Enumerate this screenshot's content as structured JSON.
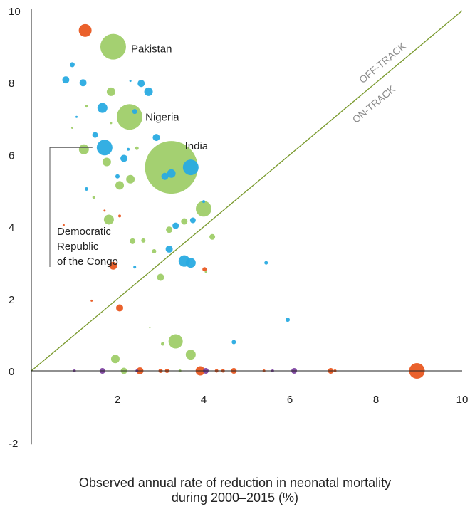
{
  "chart_data": {
    "type": "scatter",
    "xlabel_line1": "Observed annual rate of reduction in neonatal mortality",
    "xlabel_line2": "during 2000–2015 (%)",
    "xlim": [
      0,
      10
    ],
    "ylim": [
      -2,
      10
    ],
    "x_ticks": [
      2,
      4,
      6,
      8,
      10
    ],
    "y_ticks": [
      -2,
      0,
      2,
      4,
      6,
      8,
      10
    ],
    "grid": false,
    "reference_line": {
      "from": [
        0,
        0
      ],
      "to": [
        10,
        10
      ],
      "color": "#7a9a2e"
    },
    "region_labels": [
      "OFF-TRACK",
      "ON-TRACK"
    ],
    "colors": {
      "green": "#9ccc65",
      "blue": "#29abe2",
      "orange": "#e8541a",
      "purple": "#7b3f9e",
      "line": "#7a9a2e"
    },
    "annotations": [
      {
        "text": "Pakistan",
        "x": 1.9,
        "y": 9.0
      },
      {
        "text": "Nigeria",
        "x": 2.25,
        "y": 7.05
      },
      {
        "text": "India",
        "x": 3.25,
        "y": 5.65
      },
      {
        "text_lines": [
          "Democratic",
          "Republic",
          "of the Congo"
        ],
        "x": 1.6,
        "y": 6.2
      }
    ],
    "points": [
      {
        "x": 1.25,
        "y": 9.45,
        "r": 9,
        "c": "orange"
      },
      {
        "x": 1.9,
        "y": 9.0,
        "r": 18,
        "c": "green"
      },
      {
        "x": 0.95,
        "y": 8.5,
        "r": 3.5,
        "c": "blue"
      },
      {
        "x": 0.8,
        "y": 8.08,
        "r": 5,
        "c": "blue"
      },
      {
        "x": 1.2,
        "y": 8.0,
        "r": 5,
        "c": "blue"
      },
      {
        "x": 2.3,
        "y": 8.05,
        "r": 1.5,
        "c": "blue"
      },
      {
        "x": 2.55,
        "y": 7.98,
        "r": 5,
        "c": "blue"
      },
      {
        "x": 1.85,
        "y": 7.75,
        "r": 6,
        "c": "green"
      },
      {
        "x": 2.72,
        "y": 7.75,
        "r": 6,
        "c": "blue"
      },
      {
        "x": 1.28,
        "y": 7.35,
        "r": 2,
        "c": "green"
      },
      {
        "x": 1.65,
        "y": 7.3,
        "r": 7,
        "c": "blue"
      },
      {
        "x": 2.28,
        "y": 7.05,
        "r": 18,
        "c": "green"
      },
      {
        "x": 2.4,
        "y": 7.2,
        "r": 3.5,
        "c": "blue"
      },
      {
        "x": 1.05,
        "y": 7.05,
        "r": 1.5,
        "c": "blue"
      },
      {
        "x": 1.85,
        "y": 6.88,
        "r": 1.5,
        "c": "green"
      },
      {
        "x": 0.95,
        "y": 6.75,
        "r": 1.5,
        "c": "green"
      },
      {
        "x": 1.48,
        "y": 6.55,
        "r": 4,
        "c": "blue"
      },
      {
        "x": 2.9,
        "y": 6.48,
        "r": 5,
        "c": "blue"
      },
      {
        "x": 1.22,
        "y": 6.15,
        "r": 7,
        "c": "green"
      },
      {
        "x": 1.7,
        "y": 6.2,
        "r": 11,
        "c": "blue"
      },
      {
        "x": 2.25,
        "y": 6.15,
        "r": 2,
        "c": "blue"
      },
      {
        "x": 2.45,
        "y": 6.18,
        "r": 2.5,
        "c": "green"
      },
      {
        "x": 1.75,
        "y": 5.8,
        "r": 6,
        "c": "green"
      },
      {
        "x": 2.15,
        "y": 5.9,
        "r": 5,
        "c": "blue"
      },
      {
        "x": 3.25,
        "y": 5.65,
        "r": 37,
        "c": "green"
      },
      {
        "x": 3.7,
        "y": 5.65,
        "r": 11,
        "c": "blue"
      },
      {
        "x": 3.25,
        "y": 5.48,
        "r": 6,
        "c": "blue"
      },
      {
        "x": 3.1,
        "y": 5.4,
        "r": 5,
        "c": "blue"
      },
      {
        "x": 2.3,
        "y": 5.32,
        "r": 6,
        "c": "green"
      },
      {
        "x": 2.0,
        "y": 5.4,
        "r": 3,
        "c": "blue"
      },
      {
        "x": 2.05,
        "y": 5.15,
        "r": 6,
        "c": "green"
      },
      {
        "x": 1.28,
        "y": 5.05,
        "r": 2.5,
        "c": "blue"
      },
      {
        "x": 1.45,
        "y": 4.82,
        "r": 2,
        "c": "green"
      },
      {
        "x": 4.0,
        "y": 4.7,
        "r": 2,
        "c": "blue"
      },
      {
        "x": 4.0,
        "y": 4.5,
        "r": 11,
        "c": "green"
      },
      {
        "x": 1.7,
        "y": 4.45,
        "r": 1.5,
        "c": "orange"
      },
      {
        "x": 2.05,
        "y": 4.3,
        "r": 2,
        "c": "orange"
      },
      {
        "x": 1.8,
        "y": 4.2,
        "r": 7,
        "c": "green"
      },
      {
        "x": 3.75,
        "y": 4.18,
        "r": 4,
        "c": "blue"
      },
      {
        "x": 3.55,
        "y": 4.15,
        "r": 4.5,
        "c": "green"
      },
      {
        "x": 3.35,
        "y": 4.03,
        "r": 4.5,
        "c": "blue"
      },
      {
        "x": 0.75,
        "y": 4.05,
        "r": 1.5,
        "c": "orange"
      },
      {
        "x": 3.2,
        "y": 3.92,
        "r": 4.5,
        "c": "green"
      },
      {
        "x": 4.2,
        "y": 3.72,
        "r": 4,
        "c": "green"
      },
      {
        "x": 2.35,
        "y": 3.6,
        "r": 4,
        "c": "green"
      },
      {
        "x": 2.6,
        "y": 3.62,
        "r": 3,
        "c": "green"
      },
      {
        "x": 3.2,
        "y": 3.38,
        "r": 5,
        "c": "blue"
      },
      {
        "x": 2.85,
        "y": 3.32,
        "r": 3,
        "c": "green"
      },
      {
        "x": 3.55,
        "y": 3.05,
        "r": 8,
        "c": "blue"
      },
      {
        "x": 3.7,
        "y": 3.0,
        "r": 7,
        "c": "blue"
      },
      {
        "x": 5.45,
        "y": 3.0,
        "r": 2.5,
        "c": "blue"
      },
      {
        "x": 1.9,
        "y": 2.92,
        "r": 5.5,
        "c": "orange"
      },
      {
        "x": 2.4,
        "y": 2.88,
        "r": 2,
        "c": "blue"
      },
      {
        "x": 4.02,
        "y": 2.82,
        "r": 3,
        "c": "orange"
      },
      {
        "x": 4.05,
        "y": 2.75,
        "r": 1.5,
        "c": "green"
      },
      {
        "x": 3.0,
        "y": 2.6,
        "r": 5,
        "c": "green"
      },
      {
        "x": 1.4,
        "y": 1.95,
        "r": 1.5,
        "c": "orange"
      },
      {
        "x": 2.05,
        "y": 1.75,
        "r": 5,
        "c": "orange"
      },
      {
        "x": 5.95,
        "y": 1.42,
        "r": 3,
        "c": "blue"
      },
      {
        "x": 2.75,
        "y": 1.2,
        "r": 1,
        "c": "green"
      },
      {
        "x": 3.35,
        "y": 0.82,
        "r": 10,
        "c": "green"
      },
      {
        "x": 4.7,
        "y": 0.8,
        "r": 3,
        "c": "blue"
      },
      {
        "x": 3.05,
        "y": 0.75,
        "r": 2.5,
        "c": "green"
      },
      {
        "x": 3.7,
        "y": 0.45,
        "r": 7,
        "c": "green"
      },
      {
        "x": 1.95,
        "y": 0.33,
        "r": 6,
        "c": "green"
      },
      {
        "x": 1.0,
        "y": 0,
        "r": 2,
        "c": "purple"
      },
      {
        "x": 1.65,
        "y": 0,
        "r": 4,
        "c": "purple"
      },
      {
        "x": 2.15,
        "y": 0,
        "r": 4.5,
        "c": "green"
      },
      {
        "x": 2.45,
        "y": 0,
        "r": 2,
        "c": "purple"
      },
      {
        "x": 2.52,
        "y": 0,
        "r": 5,
        "c": "orange"
      },
      {
        "x": 3.0,
        "y": 0,
        "r": 3,
        "c": "orange"
      },
      {
        "x": 3.15,
        "y": 0,
        "r": 3,
        "c": "orange"
      },
      {
        "x": 3.45,
        "y": 0,
        "r": 2,
        "c": "green"
      },
      {
        "x": 3.92,
        "y": 0,
        "r": 6.5,
        "c": "orange"
      },
      {
        "x": 4.05,
        "y": 0,
        "r": 4,
        "c": "purple"
      },
      {
        "x": 4.3,
        "y": 0,
        "r": 2.5,
        "c": "orange"
      },
      {
        "x": 4.45,
        "y": 0,
        "r": 2.5,
        "c": "orange"
      },
      {
        "x": 4.7,
        "y": 0,
        "r": 4,
        "c": "orange"
      },
      {
        "x": 5.4,
        "y": 0,
        "r": 2,
        "c": "orange"
      },
      {
        "x": 5.6,
        "y": 0,
        "r": 2,
        "c": "purple"
      },
      {
        "x": 6.1,
        "y": 0,
        "r": 4,
        "c": "purple"
      },
      {
        "x": 6.95,
        "y": 0,
        "r": 4,
        "c": "orange"
      },
      {
        "x": 7.05,
        "y": 0,
        "r": 2,
        "c": "orange"
      },
      {
        "x": 8.95,
        "y": 0,
        "r": 11,
        "c": "orange"
      }
    ]
  }
}
